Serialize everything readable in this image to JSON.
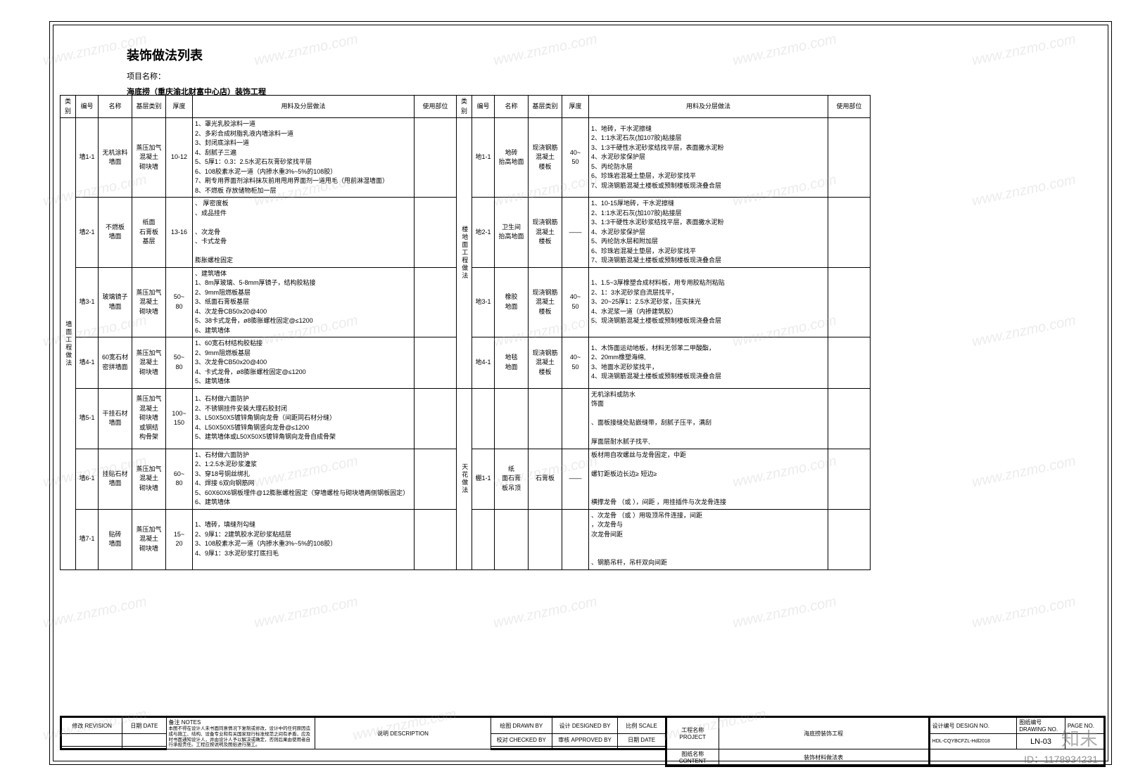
{
  "doc": {
    "title": "装饰做法列表",
    "subtitle_label": "项目名称：",
    "project_line": "海底捞（重庆渝北财富中心店）装饰工程"
  },
  "headers": {
    "cat": "类别",
    "num": "编号",
    "name": "名称",
    "base": "基层类别",
    "thick": "厚度",
    "method": "用料及分层做法",
    "use": "使用部位"
  },
  "left_cat": "墙面工程做法",
  "left_rows": [
    {
      "num": "墙1-1",
      "name": "无机涂料\n墙面",
      "base": "蒸压加气\n混凝土\n砌块墙",
      "thick": "10-12",
      "method": "1、罩光乳胶涂料一道\n2、多彩合成树脂乳液内墙涂料一道\n3、封闭底涂料一道\n4、刮腻子三遍\n5、5厚1：0.3：2.5水泥石灰膏砂浆找平层\n6、108胶素水泥一道（内掺水重3%~5%的108胶）\n7、刷专用界面剂涂料抹灰前用甩用界面剂一道甩毛（甩前淋湿墙面）\n8、不燃板       存放储物柜加一层"
    },
    {
      "num": "墙2-1",
      "name": "不燃板\n墙面",
      "base": "纸面\n石膏板\n基层",
      "thick": "13-16",
      "method": "、     厚密度板\n、成品挂件\n\n、次龙骨\n   、卡式龙骨\n\n    膨胀螺栓固定"
    },
    {
      "num": "墙3-1",
      "name": "玻璃镜子\n墙面",
      "base": "蒸压加气\n混凝土\n砌块墙",
      "thick": "50~\n80",
      "method": "、建筑墙体\n1、8m厚玻璃、5-8mm厚镜子，结构胶粘接\n2、9mm阻燃板基层\n3、纸面石膏板基层\n4、次龙骨CB50x20@400\n5、38卡式龙骨，ø8膨胀螺栓固定@≤1200\n6、建筑墙体"
    },
    {
      "num": "墙4-1",
      "name": "60宽石材\n密拼墙面",
      "base": "蒸压加气\n混凝土\n砌块墙",
      "thick": "50~\n80",
      "method": "1、60宽石材结构胶粘接\n2、9mm阻燃板基层\n3、次龙骨CB50x20@400\n4、卡式龙骨，ø8膨胀螺栓固定@≤1200\n5、建筑墙体"
    },
    {
      "num": "墙5-1",
      "name": "干挂石材\n墙面",
      "base": "蒸压加气\n混凝土\n砌块墙\n或钢结\n构骨架",
      "thick": "100~\n150",
      "method": "1、石材做六面防护\n2、不锈钢挂件安装大理石胶封闭\n3、L50X50X5镀锌角钢向龙骨（间距同石材分缝）\n4、L50X50X5镀锌角钢竖向龙骨@≤1200\n5、建筑墙体或L50X50X5镀锌角钢向龙骨自成骨架"
    },
    {
      "num": "墙6-1",
      "name": "挂贴石材\n墙面",
      "base": "蒸压加气\n混凝土\n砌块墙",
      "thick": "60~\n80",
      "method": "1、石材做六面防护\n2、1:2.5水泥砂浆灌浆\n3、穿18号铜丝绑扎\n4、焊接  6双向钢筋网\n5、60X60X6钢板埋件@12膨胀螺栓固定（穿墙螺栓与砌块墙两侧钢板固定）\n6、建筑墙体"
    },
    {
      "num": "墙7-1",
      "name": "贴砖\n墙面",
      "base": "蒸压加气\n混凝土\n砌块墙",
      "thick": "15~\n20",
      "method": "1、墙砖，填缝剂勾缝\n2、9厚1：2建筑胶水泥砂浆粘结层\n3、108胶素水泥一道（内掺水重3%~5%的108胶）\n4、9厚1：3水泥砂浆打底扫毛"
    }
  ],
  "right_groups": [
    {
      "cat": "楼地面工程做法",
      "rows": [
        {
          "num": "地1-1",
          "name": "地砖\n抬高地面",
          "base": "现浇钢筋\n混凝土\n楼板",
          "thick": "40~\n50",
          "method": "1、地砖，干水泥擦缝\n2、1:1水泥石灰(加107胶)粘接层\n3、1:3干硬性水泥砂浆结找平层，表面撒水泥粉\n4、水泥砂浆保护层\n5、丙纶防水层\n6、珍珠岩混凝土垫层，水泥砂浆找平\n7、现浇钢筋混凝土楼板或预制楼板现浇叠合层"
        },
        {
          "num": "地2-1",
          "name": "卫生间\n抬高地面",
          "base": "现浇钢筋\n混凝土\n楼板",
          "thick": "——",
          "method": "1、10-15厚地砖，干水泥擦缝\n2、1:1水泥石灰(加107胶)粘接层\n3、1:3干硬性水泥砂浆结找平层，表面撒水泥粉\n4、水泥砂浆保护层\n5、丙纶防水层和附加层\n6、珍珠岩混凝土垫层，水泥砂浆找平\n7、现浇钢筋混凝土楼板或预制楼板现浇叠合层"
        },
        {
          "num": "地3-1",
          "name": "橡胶\n地面",
          "base": "现浇钢筋\n混凝土\n楼板",
          "thick": "40~\n50",
          "method": "1、1.5~3厚橡塑合成材料板，用专用胶粘剂粘贴\n2、1：3水泥砂浆自流层找平，\n3、20~25厚1：2.5水泥砂浆，压实抹光\n4、水泥浆一道（内掺建筑胶）\n5、现浇钢筋混凝土楼板或预制楼板现浇叠合层"
        },
        {
          "num": "地4-1",
          "name": "地毯\n地面",
          "base": "现浇钢筋\n混凝土\n楼板",
          "thick": "40~\n50",
          "method": "1、木饰面运动地板，材料无邻苯二甲酸酯，\n2、20mm橡塑海绵,\n3、地面水泥砂浆找平，\n4、现浇钢筋混凝土楼板或预制楼板现浇叠合层"
        }
      ]
    },
    {
      "cat": "天花做法",
      "rows": [
        {
          "num": "",
          "name": "",
          "base": "",
          "thick": "",
          "method": "无机涂料或防水\n饰面\n\n、面板接缝处贴嵌缝带，刮腻子压平，满刮\n\n厚面层耐水腻子找平,"
        },
        {
          "num": "棚1-1",
          "name": "纸\n面石膏\n板吊顶",
          "base": "石膏板",
          "thick": "——",
          "method": "板材用自攻螺丝与龙骨固定，中距\n\n螺钉距板边长边≥      短边≥\n\n\n横撑龙骨            （或           ），间距      ，用挂插件与次龙骨连接"
        },
        {
          "num": "",
          "name": "",
          "base": "",
          "thick": "",
          "method": "、次龙骨            （或              ）用吸顶吊件连接，间距\n   ，次龙骨与\n次龙骨间距\n\n\n、钢筋吊杆，吊杆双向间距"
        }
      ]
    }
  ],
  "title_block": {
    "revision": "修改 REVISION",
    "date": "日期 DATE",
    "notes": "备注 NOTES",
    "notes_text": "本图不得在设计人未书面同意情况下复制或修改，设计中的任何原因造成与施工、结构、设备专业和有关国家现行标准规范之间有矛盾，应及时书面通知设计人，并由设计人予以解决或确定，否则后果由使用者自行承担责任。工程应按说明及图纸进行施工。",
    "description": "说明  DESCRIPTION",
    "drawn": "绘图 DRAWN BY",
    "designed": "设计 DESIGNED BY",
    "scale": "比例 SCALE",
    "checked": "校对 CHECKED BY",
    "approved": "审核 APPROVED BY",
    "date2": "日期 DATE",
    "project_label": "工程名称\nPROJECT",
    "project_value": "海底捞装饰工程",
    "drawing_label": "图纸名称\nCONTENT",
    "drawing_value": "装饰材料做法表",
    "design_no": "设计编号 DESIGN NO.",
    "drawing_no": "图纸编号 DRAWING NO.",
    "page_no_label": "PAGE NO.",
    "design_no_val": "HDL-CQYBCFZL-Hdl2018",
    "drawing_no_val": "LN-03"
  },
  "watermarks": {
    "text": "www.znzmo.com",
    "logo": "知末",
    "id": "ID：1178934231"
  },
  "colors": {
    "border": "#000000",
    "bg": "#ffffff",
    "wm": "rgba(180,180,180,0.25)"
  }
}
